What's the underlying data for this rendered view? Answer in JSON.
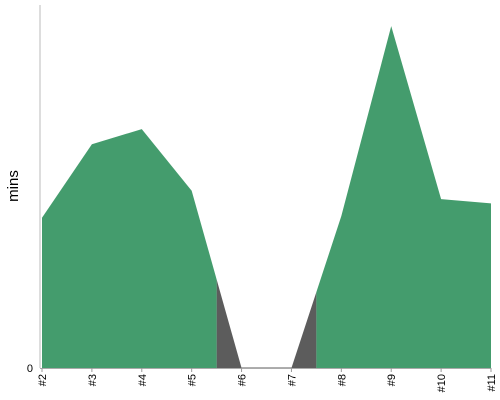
{
  "chart_data": {
    "type": "area",
    "x": [
      "#2",
      "#3",
      "#4",
      "#5",
      "#6",
      "#7",
      "#8",
      "#9",
      "#10",
      "#11"
    ],
    "values": [
      1.78,
      2.65,
      2.83,
      2.1,
      0,
      0,
      1.8,
      4.05,
      2.0,
      1.95
    ],
    "ylabel": "mins",
    "ylim": [
      0,
      4.3
    ],
    "y_ticks": [
      "0"
    ],
    "grid": false,
    "colors": {
      "area": "#449c6d",
      "drop": "#5c5c5c",
      "axis": "#bbbbbb",
      "baseline": "#aaaaaa"
    }
  }
}
